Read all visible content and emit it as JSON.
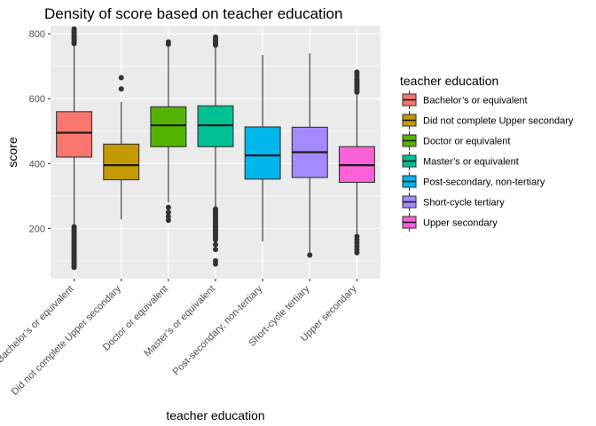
{
  "chart_data": {
    "type": "boxplot",
    "title": "Density of score based on teacher education",
    "xlabel": "teacher education",
    "ylabel": "score",
    "ylim": [
      45,
      825
    ],
    "yticks": [
      200,
      400,
      600,
      800
    ],
    "grid": true,
    "legend_title": "teacher education",
    "legend_position": "right",
    "categories": [
      "Bachelor’s or equivalent",
      "Did not complete Upper secondary",
      "Doctor or equivalent",
      "Master’s or equivalent",
      "Post-secondary, non-tertiary",
      "Short-cycle tertiary",
      "Upper secondary"
    ],
    "colors": [
      "#F8766D",
      "#C49A00",
      "#53B400",
      "#00C094",
      "#00B6EB",
      "#A58AFF",
      "#FB61D7"
    ],
    "boxes": [
      {
        "q1": 420,
        "median": 495,
        "q3": 560,
        "whisker_low": 210,
        "whisker_high": 765,
        "outliers": [
          205,
          200,
          195,
          190,
          185,
          180,
          175,
          170,
          165,
          160,
          155,
          150,
          145,
          140,
          135,
          130,
          125,
          120,
          115,
          110,
          105,
          100,
          95,
          90,
          85,
          80,
          770,
          775,
          780,
          785,
          790,
          795,
          800,
          805,
          810,
          815
        ]
      },
      {
        "q1": 350,
        "median": 395,
        "q3": 460,
        "whisker_low": 228,
        "whisker_high": 590,
        "outliers": [
          630,
          665
        ]
      },
      {
        "q1": 452,
        "median": 518,
        "q3": 575,
        "whisker_low": 280,
        "whisker_high": 760,
        "outliers": [
          265,
          250,
          237,
          225,
          768,
          775
        ]
      },
      {
        "q1": 452,
        "median": 518,
        "q3": 578,
        "whisker_low": 268,
        "whisker_high": 760,
        "outliers": [
          260,
          255,
          250,
          245,
          240,
          235,
          230,
          225,
          220,
          215,
          210,
          205,
          200,
          195,
          190,
          185,
          180,
          175,
          170,
          165,
          150,
          135,
          100,
          90,
          765,
          770,
          775,
          780,
          785,
          790
        ]
      },
      {
        "q1": 352,
        "median": 425,
        "q3": 513,
        "whisker_low": 160,
        "whisker_high": 735,
        "outliers": []
      },
      {
        "q1": 357,
        "median": 435,
        "q3": 512,
        "whisker_low": 125,
        "whisker_high": 740,
        "outliers": [
          118
        ]
      },
      {
        "q1": 342,
        "median": 395,
        "q3": 452,
        "whisker_low": 180,
        "whisker_high": 612,
        "outliers": [
          175,
          165,
          155,
          145,
          135,
          125,
          620,
          625,
          630,
          635,
          640,
          645,
          650,
          655,
          660,
          668,
          675,
          682
        ]
      }
    ]
  }
}
